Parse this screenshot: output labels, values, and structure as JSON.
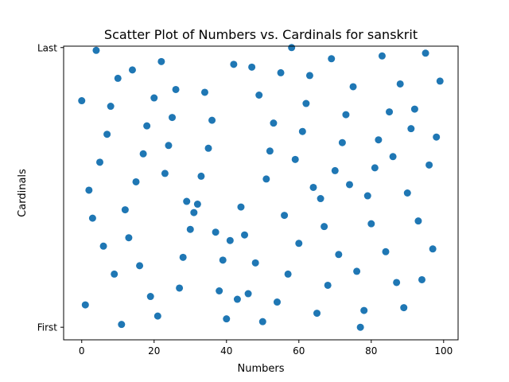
{
  "chart_data": {
    "type": "scatter",
    "title": "Scatter Plot of Numbers vs. Cardinals for sanskrit",
    "xlabel": "Numbers",
    "ylabel": "Cardinals",
    "xlim": [
      -5,
      104
    ],
    "ylim": [
      -0.045,
      1.005
    ],
    "x_ticks": [
      0,
      20,
      40,
      60,
      80,
      100
    ],
    "y_ticks": [
      {
        "value": 0,
        "label": "First"
      },
      {
        "value": 1,
        "label": "Last"
      }
    ],
    "marker_color": "#1f77b4",
    "grid": false,
    "points": [
      [
        0,
        0.81
      ],
      [
        1,
        0.08
      ],
      [
        2,
        0.49
      ],
      [
        3,
        0.39
      ],
      [
        4,
        0.99
      ],
      [
        5,
        0.59
      ],
      [
        6,
        0.29
      ],
      [
        7,
        0.69
      ],
      [
        8,
        0.79
      ],
      [
        9,
        0.19
      ],
      [
        10,
        0.89
      ],
      [
        11,
        0.01
      ],
      [
        12,
        0.42
      ],
      [
        13,
        0.32
      ],
      [
        14,
        0.92
      ],
      [
        15,
        0.52
      ],
      [
        16,
        0.22
      ],
      [
        17,
        0.62
      ],
      [
        18,
        0.72
      ],
      [
        19,
        0.11
      ],
      [
        20,
        0.82
      ],
      [
        21,
        0.04
      ],
      [
        22,
        0.95
      ],
      [
        23,
        0.55
      ],
      [
        24,
        0.65
      ],
      [
        25,
        0.75
      ],
      [
        26,
        0.85
      ],
      [
        27,
        0.14
      ],
      [
        28,
        0.25
      ],
      [
        29,
        0.45
      ],
      [
        30,
        0.35
      ],
      [
        31,
        0.41
      ],
      [
        32,
        0.44
      ],
      [
        33,
        0.54
      ],
      [
        34,
        0.84
      ],
      [
        35,
        0.64
      ],
      [
        36,
        0.74
      ],
      [
        37,
        0.34
      ],
      [
        38,
        0.13
      ],
      [
        39,
        0.24
      ],
      [
        40,
        0.03
      ],
      [
        41,
        0.31
      ],
      [
        42,
        0.94
      ],
      [
        43,
        0.1
      ],
      [
        44,
        0.43
      ],
      [
        45,
        0.33
      ],
      [
        46,
        0.12
      ],
      [
        47,
        0.93
      ],
      [
        48,
        0.23
      ],
      [
        49,
        0.83
      ],
      [
        50,
        0.02
      ],
      [
        51,
        0.53
      ],
      [
        52,
        0.63
      ],
      [
        53,
        0.73
      ],
      [
        54,
        0.09
      ],
      [
        55,
        0.91
      ],
      [
        56,
        0.4
      ],
      [
        57,
        0.19
      ],
      [
        58,
        1.0
      ],
      [
        59,
        0.6
      ],
      [
        60,
        0.3
      ],
      [
        61,
        0.7
      ],
      [
        62,
        0.8
      ],
      [
        63,
        0.9
      ],
      [
        64,
        0.5
      ],
      [
        65,
        0.05
      ],
      [
        66,
        0.46
      ],
      [
        67,
        0.36
      ],
      [
        68,
        0.15
      ],
      [
        69,
        0.96
      ],
      [
        70,
        0.56
      ],
      [
        71,
        0.26
      ],
      [
        72,
        0.66
      ],
      [
        73,
        0.76
      ],
      [
        74,
        0.51
      ],
      [
        75,
        0.86
      ],
      [
        76,
        0.2
      ],
      [
        77,
        0.0
      ],
      [
        78,
        0.06
      ],
      [
        79,
        0.47
      ],
      [
        80,
        0.37
      ],
      [
        81,
        0.57
      ],
      [
        82,
        0.67
      ],
      [
        83,
        0.97
      ],
      [
        84,
        0.27
      ],
      [
        85,
        0.77
      ],
      [
        86,
        0.61
      ],
      [
        87,
        0.16
      ],
      [
        88,
        0.87
      ],
      [
        89,
        0.07
      ],
      [
        90,
        0.48
      ],
      [
        91,
        0.71
      ],
      [
        92,
        0.78
      ],
      [
        93,
        0.38
      ],
      [
        94,
        0.17
      ],
      [
        95,
        0.98
      ],
      [
        96,
        0.58
      ],
      [
        97,
        0.28
      ],
      [
        98,
        0.68
      ],
      [
        99,
        0.88
      ]
    ]
  }
}
